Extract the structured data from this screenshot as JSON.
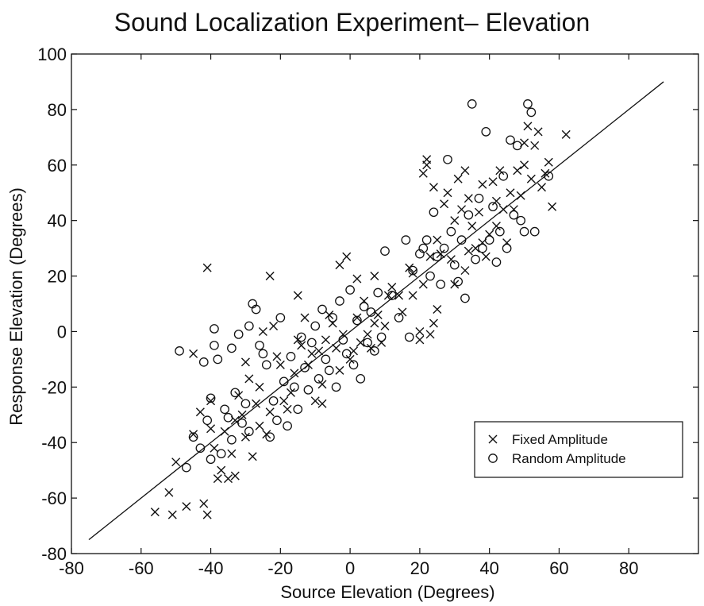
{
  "chart_data": {
    "type": "scatter",
    "title": "Sound Localization Experiment– Elevation",
    "xlabel": "Source Elevation (Degrees)",
    "ylabel": "Response Elevation (Degrees)",
    "xlim": [
      -80,
      100
    ],
    "ylim": [
      -80,
      100
    ],
    "xticks": [
      -80,
      -60,
      -40,
      -20,
      0,
      20,
      40,
      60,
      80
    ],
    "yticks": [
      -80,
      -60,
      -40,
      -20,
      0,
      20,
      40,
      60,
      80,
      100
    ],
    "grid": false,
    "legend_position": "lower-right",
    "reference_line": {
      "x": [
        -75,
        90
      ],
      "y": [
        -75,
        90
      ]
    },
    "series": [
      {
        "name": "Fixed Amplitude",
        "marker": "x",
        "color": "#111111",
        "points": [
          [
            -56,
            -65
          ],
          [
            -51,
            -66
          ],
          [
            -52,
            -58
          ],
          [
            -50,
            -47
          ],
          [
            -47,
            -63
          ],
          [
            -45,
            -37
          ],
          [
            -45,
            -8
          ],
          [
            -43,
            -29
          ],
          [
            -42,
            -62
          ],
          [
            -41,
            -66
          ],
          [
            -41,
            23
          ],
          [
            -40,
            -25
          ],
          [
            -40,
            -35
          ],
          [
            -39,
            -42
          ],
          [
            -38,
            -53
          ],
          [
            -37,
            -50
          ],
          [
            -36,
            -36
          ],
          [
            -35,
            -53
          ],
          [
            -34,
            -44
          ],
          [
            -33,
            -52
          ],
          [
            -33,
            -32
          ],
          [
            -32,
            -23
          ],
          [
            -31,
            -30
          ],
          [
            -30,
            -38
          ],
          [
            -30,
            -11
          ],
          [
            -29,
            -17
          ],
          [
            -28,
            -45
          ],
          [
            -27,
            -26
          ],
          [
            -26,
            -20
          ],
          [
            -26,
            -34
          ],
          [
            -25,
            0
          ],
          [
            -24,
            -37
          ],
          [
            -23,
            -29
          ],
          [
            -23,
            20
          ],
          [
            -22,
            2
          ],
          [
            -21,
            -9
          ],
          [
            -20,
            -12
          ],
          [
            -19,
            -25
          ],
          [
            -18,
            -28
          ],
          [
            -17,
            -22
          ],
          [
            -16,
            -15
          ],
          [
            -15,
            -3
          ],
          [
            -15,
            13
          ],
          [
            -14,
            -5
          ],
          [
            -13,
            5
          ],
          [
            -12,
            -12
          ],
          [
            -11,
            -8
          ],
          [
            -10,
            -25
          ],
          [
            -9,
            -7
          ],
          [
            -8,
            -19
          ],
          [
            -8,
            -26
          ],
          [
            -7,
            -3
          ],
          [
            -6,
            6
          ],
          [
            -5,
            3
          ],
          [
            -4,
            -6
          ],
          [
            -3,
            24
          ],
          [
            -3,
            -14
          ],
          [
            -2,
            -1
          ],
          [
            -1,
            27
          ],
          [
            0,
            -10
          ],
          [
            1,
            -7
          ],
          [
            2,
            5
          ],
          [
            2,
            19
          ],
          [
            3,
            -4
          ],
          [
            4,
            11
          ],
          [
            5,
            -1
          ],
          [
            6,
            -6
          ],
          [
            7,
            3
          ],
          [
            7,
            20
          ],
          [
            8,
            6
          ],
          [
            9,
            -4
          ],
          [
            10,
            2
          ],
          [
            11,
            13
          ],
          [
            12,
            16
          ],
          [
            14,
            13
          ],
          [
            15,
            7
          ],
          [
            17,
            23
          ],
          [
            18,
            21
          ],
          [
            18,
            13
          ],
          [
            20,
            -3
          ],
          [
            20,
            0
          ],
          [
            21,
            57
          ],
          [
            21,
            17
          ],
          [
            22,
            60
          ],
          [
            22,
            62
          ],
          [
            23,
            -1
          ],
          [
            23,
            27
          ],
          [
            24,
            52
          ],
          [
            24,
            3
          ],
          [
            25,
            8
          ],
          [
            25,
            33
          ],
          [
            26,
            28
          ],
          [
            27,
            46
          ],
          [
            28,
            50
          ],
          [
            29,
            26
          ],
          [
            30,
            40
          ],
          [
            30,
            17
          ],
          [
            31,
            55
          ],
          [
            32,
            44
          ],
          [
            33,
            58
          ],
          [
            33,
            22
          ],
          [
            34,
            48
          ],
          [
            34,
            29
          ],
          [
            35,
            38
          ],
          [
            36,
            30
          ],
          [
            37,
            43
          ],
          [
            38,
            53
          ],
          [
            38,
            32
          ],
          [
            39,
            27
          ],
          [
            40,
            35
          ],
          [
            41,
            54
          ],
          [
            42,
            47
          ],
          [
            42,
            38
          ],
          [
            43,
            58
          ],
          [
            44,
            44
          ],
          [
            45,
            32
          ],
          [
            46,
            50
          ],
          [
            47,
            44
          ],
          [
            48,
            58
          ],
          [
            49,
            49
          ],
          [
            50,
            60
          ],
          [
            50,
            68
          ],
          [
            51,
            74
          ],
          [
            52,
            55
          ],
          [
            53,
            67
          ],
          [
            54,
            72
          ],
          [
            55,
            52
          ],
          [
            56,
            57
          ],
          [
            57,
            61
          ],
          [
            58,
            45
          ],
          [
            62,
            71
          ]
        ]
      },
      {
        "name": "Random Amplitude",
        "marker": "o",
        "color": "#111111",
        "points": [
          [
            -49,
            -7
          ],
          [
            -47,
            -49
          ],
          [
            -45,
            -38
          ],
          [
            -43,
            -42
          ],
          [
            -42,
            -11
          ],
          [
            -41,
            -32
          ],
          [
            -40,
            -24
          ],
          [
            -40,
            -46
          ],
          [
            -39,
            1
          ],
          [
            -39,
            -5
          ],
          [
            -38,
            -10
          ],
          [
            -37,
            -44
          ],
          [
            -36,
            -28
          ],
          [
            -35,
            -31
          ],
          [
            -34,
            -6
          ],
          [
            -34,
            -39
          ],
          [
            -33,
            -22
          ],
          [
            -32,
            -1
          ],
          [
            -31,
            -33
          ],
          [
            -30,
            -26
          ],
          [
            -29,
            2
          ],
          [
            -29,
            -36
          ],
          [
            -28,
            10
          ],
          [
            -27,
            8
          ],
          [
            -26,
            -5
          ],
          [
            -25,
            -8
          ],
          [
            -24,
            -12
          ],
          [
            -23,
            -38
          ],
          [
            -22,
            -25
          ],
          [
            -21,
            -32
          ],
          [
            -20,
            5
          ],
          [
            -19,
            -18
          ],
          [
            -18,
            -34
          ],
          [
            -17,
            -9
          ],
          [
            -16,
            -20
          ],
          [
            -15,
            -28
          ],
          [
            -14,
            -2
          ],
          [
            -13,
            -13
          ],
          [
            -12,
            -21
          ],
          [
            -11,
            -4
          ],
          [
            -10,
            2
          ],
          [
            -9,
            -17
          ],
          [
            -8,
            8
          ],
          [
            -7,
            -10
          ],
          [
            -6,
            -14
          ],
          [
            -5,
            5
          ],
          [
            -4,
            -20
          ],
          [
            -3,
            11
          ],
          [
            -2,
            -3
          ],
          [
            -1,
            -8
          ],
          [
            0,
            15
          ],
          [
            1,
            -12
          ],
          [
            2,
            4
          ],
          [
            3,
            -17
          ],
          [
            4,
            9
          ],
          [
            5,
            -4
          ],
          [
            6,
            7
          ],
          [
            7,
            -7
          ],
          [
            8,
            14
          ],
          [
            9,
            -2
          ],
          [
            10,
            29
          ],
          [
            12,
            13
          ],
          [
            14,
            5
          ],
          [
            16,
            33
          ],
          [
            17,
            -2
          ],
          [
            18,
            22
          ],
          [
            20,
            28
          ],
          [
            21,
            30
          ],
          [
            22,
            33
          ],
          [
            23,
            20
          ],
          [
            24,
            43
          ],
          [
            25,
            27
          ],
          [
            26,
            17
          ],
          [
            27,
            30
          ],
          [
            28,
            62
          ],
          [
            29,
            36
          ],
          [
            30,
            24
          ],
          [
            31,
            18
          ],
          [
            32,
            33
          ],
          [
            33,
            12
          ],
          [
            34,
            42
          ],
          [
            35,
            82
          ],
          [
            36,
            26
          ],
          [
            37,
            48
          ],
          [
            38,
            30
          ],
          [
            39,
            72
          ],
          [
            40,
            33
          ],
          [
            41,
            45
          ],
          [
            42,
            25
          ],
          [
            43,
            36
          ],
          [
            44,
            56
          ],
          [
            45,
            30
          ],
          [
            46,
            69
          ],
          [
            47,
            42
          ],
          [
            48,
            67
          ],
          [
            49,
            40
          ],
          [
            50,
            36
          ],
          [
            51,
            82
          ],
          [
            52,
            79
          ],
          [
            53,
            36
          ],
          [
            57,
            56
          ]
        ]
      }
    ]
  }
}
